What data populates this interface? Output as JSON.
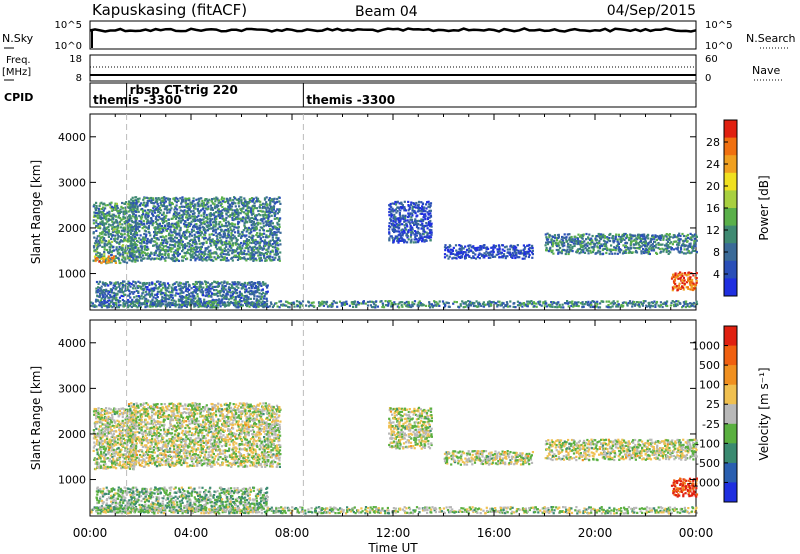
{
  "header": {
    "station": "Kapuskasing (fitACF)",
    "beam": "Beam 04",
    "date": "04/Sep/2015"
  },
  "noise_panel": {
    "left_label": "N.Sky",
    "right_label": "N.Search",
    "left_ticks": [
      "10^5",
      "10^0"
    ],
    "right_ticks": [
      "10^5",
      "10^0"
    ]
  },
  "freq_panel": {
    "left_label": "Freq.",
    "left_unit": "[MHz]",
    "right_label": "Nave",
    "left_ticks": [
      "18",
      "8"
    ],
    "right_ticks": [
      "60",
      "0"
    ]
  },
  "cpid_panel": {
    "label": "CPID",
    "segments": [
      {
        "start_hour": 0.0,
        "text": "themis -3300"
      },
      {
        "start_hour": 1.45,
        "text": "rbsp CT-trig 220"
      },
      {
        "start_hour": 8.45,
        "text": "themis -3300"
      }
    ]
  },
  "time_axis": {
    "label": "Time UT",
    "tick_labels": [
      "00:00",
      "04:00",
      "08:00",
      "12:00",
      "16:00",
      "20:00",
      "00:00"
    ],
    "range_hours": [
      0,
      24
    ]
  },
  "chart_data": [
    {
      "type": "heatmap",
      "name": "power",
      "ylabel": "Slant Range [km]",
      "yticks": [
        1000,
        2000,
        3000,
        4000
      ],
      "ylim": [
        200,
        4500
      ],
      "xlim": [
        0,
        24
      ],
      "colorbar": {
        "label": "Power [dB]",
        "ticks": [
          "4",
          "8",
          "12",
          "16",
          "20",
          "24",
          "28"
        ],
        "colors": [
          "#1f2fe0",
          "#2a4fb8",
          "#3a6a98",
          "#3f8a72",
          "#5ab04a",
          "#a8d040",
          "#f0e020",
          "#f0a020",
          "#f07010",
          "#e02010"
        ]
      },
      "regions": [
        {
          "t0": 0.1,
          "t1": 1.8,
          "r0": 1250,
          "r1": 2600,
          "level": 0.35
        },
        {
          "t0": 0.1,
          "t1": 1.0,
          "r0": 1250,
          "r1": 1400,
          "level": 0.75
        },
        {
          "t0": 1.5,
          "t1": 7.5,
          "r0": 1300,
          "r1": 2700,
          "level": 0.3
        },
        {
          "t0": 0.2,
          "t1": 7.0,
          "r0": 300,
          "r1": 850,
          "level": 0.25
        },
        {
          "t0": 11.8,
          "t1": 13.5,
          "r0": 1700,
          "r1": 2600,
          "level": 0.15
        },
        {
          "t0": 14.0,
          "t1": 17.5,
          "r0": 1350,
          "r1": 1650,
          "level": 0.12
        },
        {
          "t0": 18.0,
          "t1": 24.0,
          "r0": 1450,
          "r1": 1900,
          "level": 0.3
        },
        {
          "t0": 23.0,
          "t1": 24.0,
          "r0": 650,
          "r1": 1050,
          "level": 0.9
        },
        {
          "t0": 0.0,
          "t1": 24.0,
          "r0": 280,
          "r1": 420,
          "level": 0.3
        }
      ]
    },
    {
      "type": "heatmap",
      "name": "velocity",
      "ylabel": "Slant Range [km]",
      "yticks": [
        1000,
        2000,
        3000,
        4000
      ],
      "ylim": [
        200,
        4500
      ],
      "xlim": [
        0,
        24
      ],
      "colorbar": {
        "label": "Velocity [m s⁻¹]",
        "ticks": [
          "1000",
          "500",
          "100",
          "25",
          "-25",
          "-100",
          "-500",
          "-1000"
        ],
        "colors": [
          "#1f2fe0",
          "#2a5fb0",
          "#3a8a70",
          "#5ab040",
          "#b8b8b8",
          "#f0c050",
          "#f09020",
          "#f06010",
          "#e02010"
        ]
      },
      "regions": [
        {
          "t0": 0.1,
          "t1": 1.8,
          "r0": 1250,
          "r1": 2600,
          "level": 0.5
        },
        {
          "t0": 1.5,
          "t1": 7.5,
          "r0": 1300,
          "r1": 2700,
          "level": 0.5
        },
        {
          "t0": 0.2,
          "t1": 7.0,
          "r0": 300,
          "r1": 850,
          "level": 0.4
        },
        {
          "t0": 11.8,
          "t1": 13.5,
          "r0": 1700,
          "r1": 2600,
          "level": 0.5
        },
        {
          "t0": 14.0,
          "t1": 17.5,
          "r0": 1350,
          "r1": 1650,
          "level": 0.5
        },
        {
          "t0": 18.0,
          "t1": 24.0,
          "r0": 1450,
          "r1": 1900,
          "level": 0.5
        },
        {
          "t0": 23.0,
          "t1": 24.0,
          "r0": 650,
          "r1": 1050,
          "level": 0.9
        },
        {
          "t0": 0.0,
          "t1": 24.0,
          "r0": 280,
          "r1": 420,
          "level": 0.45
        }
      ]
    }
  ]
}
